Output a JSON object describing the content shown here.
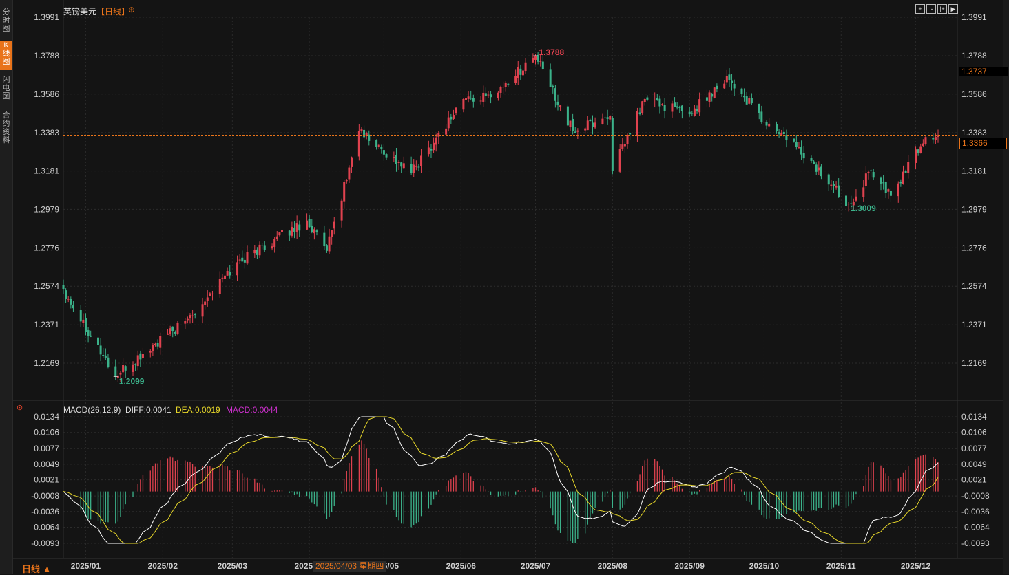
{
  "sidebar": {
    "tabs": [
      {
        "label": "分时图"
      },
      {
        "label": "K线图"
      },
      {
        "label": "闪电图"
      },
      {
        "label": "合约资料"
      }
    ]
  },
  "header": {
    "symbol": "英镑美元",
    "period_tag": "【日线】"
  },
  "price_axis": {
    "ticks": [
      "1.3991",
      "1.3788",
      "1.3586",
      "1.3383",
      "1.3181",
      "1.2979",
      "1.2776",
      "1.2574",
      "1.2371",
      "1.2169"
    ]
  },
  "markers": {
    "last_price": "1.3366",
    "crosshair_price": "1.3737",
    "high_label": "1.3788",
    "low_label": "1.2099",
    "recent_low_label": "1.3009"
  },
  "macd": {
    "title": "MACD(26,12,9)",
    "diff": "DIFF:0.0041",
    "dea": "DEA:0.0019",
    "hist": "MACD:0.0044",
    "ticks": [
      "0.0134",
      "0.0106",
      "0.0077",
      "0.0049",
      "0.0021",
      "-0.0008",
      "-0.0036",
      "-0.0064",
      "-0.0093"
    ]
  },
  "time_axis": {
    "labels": [
      "2025/01",
      "2025/02",
      "2025/03",
      "2025/04",
      "2025/05",
      "2025/06",
      "2025/07",
      "2025/08",
      "2025/09",
      "2025/10",
      "2025/11",
      "2025/12"
    ],
    "crosshair_date": "2025/04/03 星期四"
  },
  "footer": {
    "period_button": "日线 ▲"
  },
  "colors": {
    "up": "#e0424f",
    "down": "#3bb28a",
    "diff": "#ffffff",
    "dea": "#e8d82a",
    "hist_label": "#d030d0",
    "accent": "#e8731a",
    "high_text": "#e0424f",
    "low_text": "#3bb28a"
  },
  "chart_data": [
    {
      "type": "candlestick",
      "title": "英镑美元 日线",
      "ylim": [
        1.2169,
        1.3991
      ],
      "anchors": [
        {
          "date": "2024-12-23",
          "close": 1.256
        },
        {
          "date": "2025-01-13",
          "close": 1.2099
        },
        {
          "date": "2025-02-10",
          "close": 1.239
        },
        {
          "date": "2025-03-03",
          "close": 1.27
        },
        {
          "date": "2025-03-31",
          "close": 1.292
        },
        {
          "date": "2025-04-08",
          "close": 1.276
        },
        {
          "date": "2025-04-21",
          "close": 1.339
        },
        {
          "date": "2025-05-12",
          "close": 1.317
        },
        {
          "date": "2025-06-02",
          "close": 1.356
        },
        {
          "date": "2025-06-13",
          "close": 1.357
        },
        {
          "date": "2025-07-01",
          "close": 1.3788
        },
        {
          "date": "2025-07-16",
          "close": 1.339
        },
        {
          "date": "2025-07-31",
          "close": 1.347
        },
        {
          "date": "2025-08-01",
          "close": 1.318
        },
        {
          "date": "2025-08-14",
          "close": 1.356
        },
        {
          "date": "2025-09-01",
          "close": 1.348
        },
        {
          "date": "2025-09-16",
          "close": 1.368
        },
        {
          "date": "2025-10-01",
          "close": 1.344
        },
        {
          "date": "2025-10-14",
          "close": 1.331
        },
        {
          "date": "2025-11-04",
          "close": 1.3009
        },
        {
          "date": "2025-11-13",
          "close": 1.318
        },
        {
          "date": "2025-11-21",
          "close": 1.305
        },
        {
          "date": "2025-12-05",
          "close": 1.336
        },
        {
          "date": "2025-12-10",
          "close": 1.3366
        }
      ],
      "high": {
        "value": 1.3788,
        "date": "2025-07-01"
      },
      "low": {
        "value": 1.2099,
        "date": "2025-01-13"
      },
      "last": 1.3366
    },
    {
      "type": "line",
      "title": "MACD(26,12,9)",
      "ylim": [
        -0.0093,
        0.0134
      ],
      "series": [
        {
          "name": "DIFF",
          "last": 0.0041
        },
        {
          "name": "DEA",
          "last": 0.0019
        },
        {
          "name": "MACD",
          "last": 0.0044
        }
      ]
    }
  ]
}
